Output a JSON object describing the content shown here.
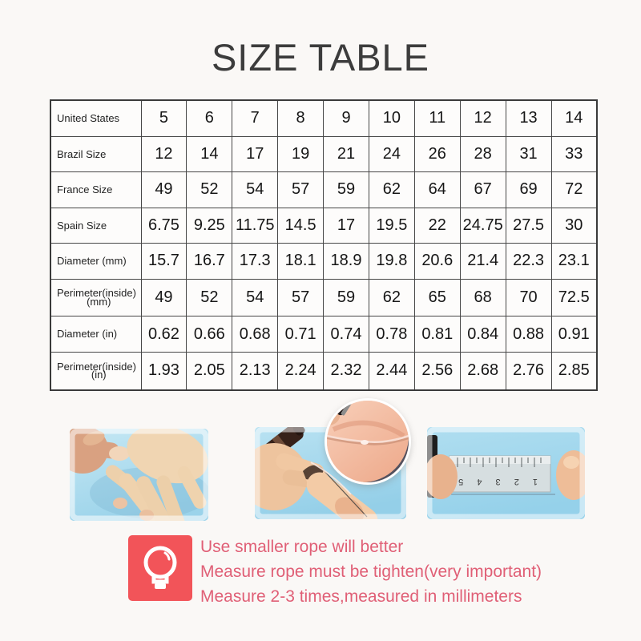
{
  "page": {
    "title": "SIZE TABLE"
  },
  "chart_data": {
    "type": "table",
    "title": "SIZE TABLE",
    "rows": [
      {
        "label": "United States",
        "sublabel": "",
        "values": [
          "5",
          "6",
          "7",
          "8",
          "9",
          "10",
          "11",
          "12",
          "13",
          "14"
        ]
      },
      {
        "label": "Brazil Size",
        "sublabel": "",
        "values": [
          "12",
          "14",
          "17",
          "19",
          "21",
          "24",
          "26",
          "28",
          "31",
          "33"
        ]
      },
      {
        "label": "France Size",
        "sublabel": "",
        "values": [
          "49",
          "52",
          "54",
          "57",
          "59",
          "62",
          "64",
          "67",
          "69",
          "72"
        ]
      },
      {
        "label": "Spain Size",
        "sublabel": "",
        "values": [
          "6.75",
          "9.25",
          "11.75",
          "14.5",
          "17",
          "19.5",
          "22",
          "24.75",
          "27.5",
          "30"
        ]
      },
      {
        "label": "Diameter (mm)",
        "sublabel": "",
        "values": [
          "15.7",
          "16.7",
          "17.3",
          "18.1",
          "18.9",
          "19.8",
          "20.6",
          "21.4",
          "22.3",
          "23.1"
        ]
      },
      {
        "label": "Perimeter(inside)",
        "sublabel": "(mm)",
        "values": [
          "49",
          "52",
          "54",
          "57",
          "59",
          "62",
          "65",
          "68",
          "70",
          "72.5"
        ]
      },
      {
        "label": "Diameter (in)",
        "sublabel": "",
        "values": [
          "0.62",
          "0.66",
          "0.68",
          "0.71",
          "0.74",
          "0.78",
          "0.81",
          "0.84",
          "0.88",
          "0.91"
        ]
      },
      {
        "label": "Perimeter(inside)",
        "sublabel": "(in)",
        "values": [
          "1.93",
          "2.05",
          "2.13",
          "2.24",
          "2.32",
          "2.44",
          "2.56",
          "2.68",
          "2.76",
          "2.85"
        ]
      }
    ]
  },
  "tips": {
    "lines": [
      "Use smaller rope will better",
      "Measure rope must be tighten(very important)",
      "Measure 2-3 times,measured in millimeters"
    ]
  },
  "photos": {
    "icons": [
      "open-hand-photo",
      "string-measure-photo",
      "string-knot-closeup-photo",
      "ruler-measure-photo",
      "lightbulb-icon"
    ],
    "ruler_numbers": "1 2 3 4 5 6 7"
  },
  "colors": {
    "tip_box": "#f25459",
    "tip_text": "#e05f76",
    "photo_background_blue": "#a6daee",
    "table_border": "#3a3a3a"
  }
}
